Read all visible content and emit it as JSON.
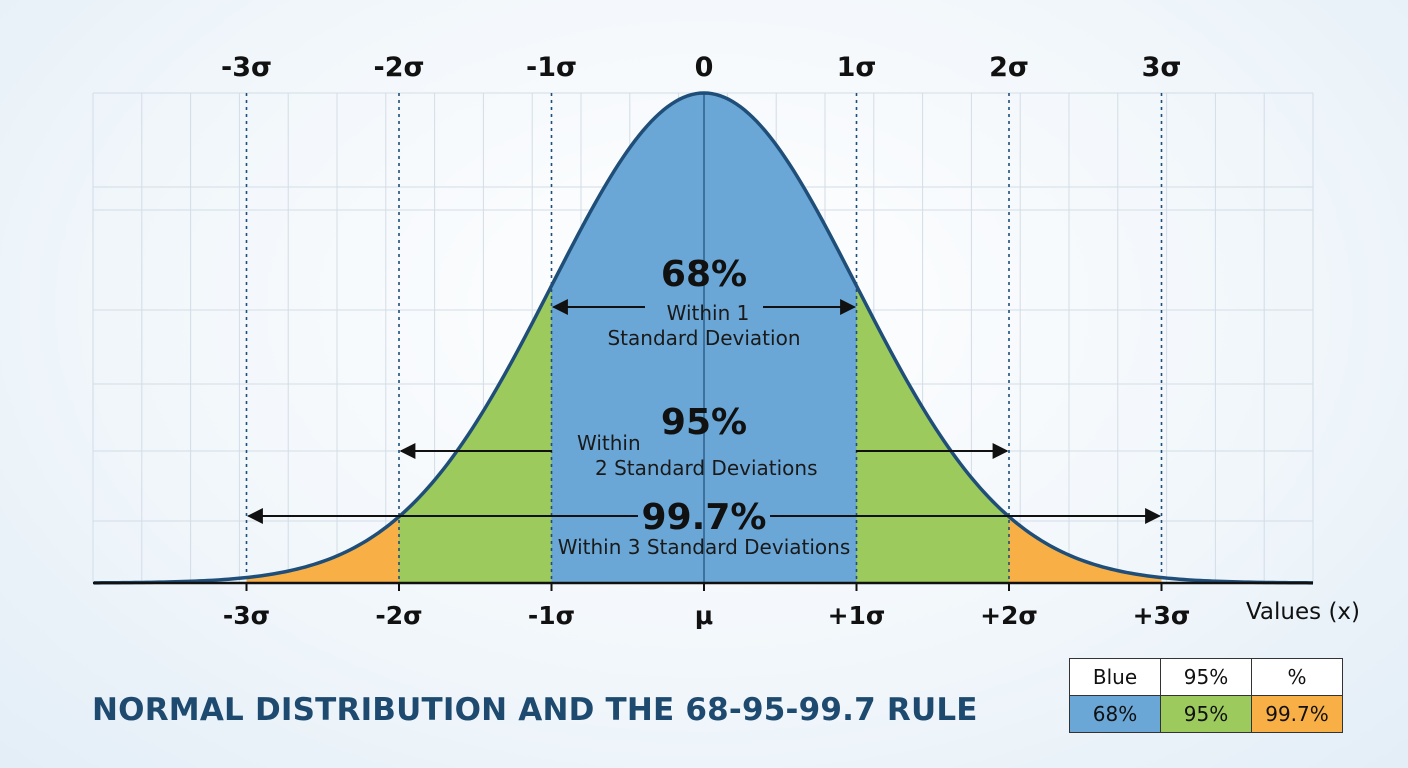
{
  "chart_data": {
    "type": "area",
    "title": "NORMAL DISTRIBUTION AND THE 68-95-99.7 RULE",
    "xlabel": "Values (x)",
    "xlim": [
      -4,
      4
    ],
    "top_ticks": [
      "-3σ",
      "-2σ",
      "-1σ",
      "0",
      "1σ",
      "2σ",
      "3σ"
    ],
    "bottom_ticks": [
      "-3σ",
      "-2σ",
      "-1σ",
      "μ",
      "+1σ",
      "+2σ",
      "+3σ"
    ],
    "tick_positions": [
      -3,
      -2,
      -1,
      0,
      1,
      2,
      3
    ],
    "grid": true,
    "regions": [
      {
        "range": [
          -1,
          1
        ],
        "color": "#6aa7d6"
      },
      {
        "range": [
          -2,
          -1
        ],
        "color": "#9dca5c"
      },
      {
        "range": [
          1,
          2
        ],
        "color": "#9dca5c"
      },
      {
        "range": [
          -3,
          -2
        ],
        "color": "#f8b046"
      },
      {
        "range": [
          2,
          3
        ],
        "color": "#f8b046"
      }
    ],
    "curve_color": "#1f4e79",
    "annotations": [
      {
        "percent": "68%",
        "line1": "Within 1",
        "line2": "Standard Deviation",
        "range": [
          -1,
          1
        ]
      },
      {
        "percent": "95%",
        "line1": "Within",
        "line2": "2 Standard Deviations",
        "range": [
          -2,
          2
        ]
      },
      {
        "percent": "99.7%",
        "line1": "Within 3 Standard Deviations",
        "range": [
          -3,
          3
        ]
      }
    ]
  },
  "legend_table": {
    "headers": [
      "Blue",
      "95%",
      "%"
    ],
    "values": [
      "68%",
      "95%",
      "99.7%"
    ],
    "colors": [
      "#6aa7d6",
      "#9dca5c",
      "#f8b046"
    ]
  }
}
